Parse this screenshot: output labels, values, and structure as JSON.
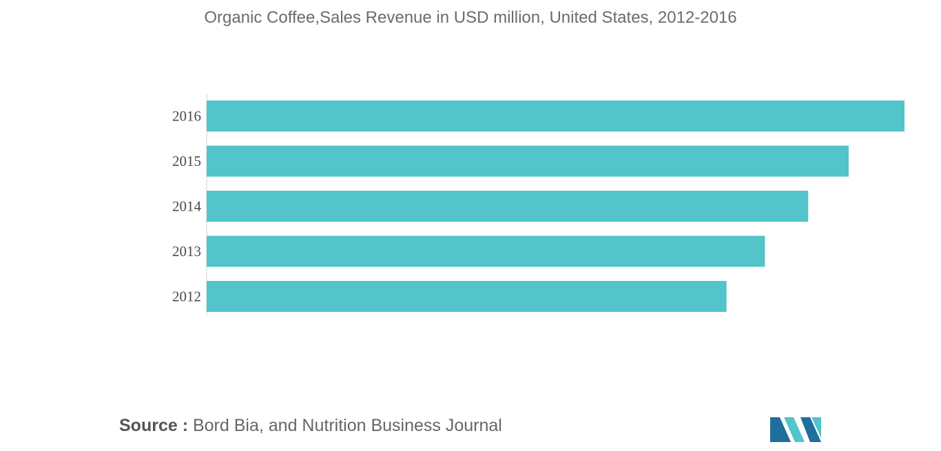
{
  "chart_data": {
    "type": "bar",
    "orientation": "horizontal",
    "title": "Organic Coffee,Sales Revenue in USD million, United States, 2012-2016",
    "categories": [
      "2016",
      "2015",
      "2014",
      "2013",
      "2012"
    ],
    "values": [
      100,
      92,
      86.2,
      80,
      74.5
    ],
    "xlim": [
      0,
      100
    ],
    "grid": false,
    "legend": "none",
    "bar_color": "#52c4ca"
  },
  "footer": {
    "source_prefix": "Source :",
    "source_text": " Bord Bia, and Nutrition Business Journal"
  },
  "colors": {
    "logo_dark": "#1f6e9c",
    "logo_light": "#52c4ca"
  }
}
